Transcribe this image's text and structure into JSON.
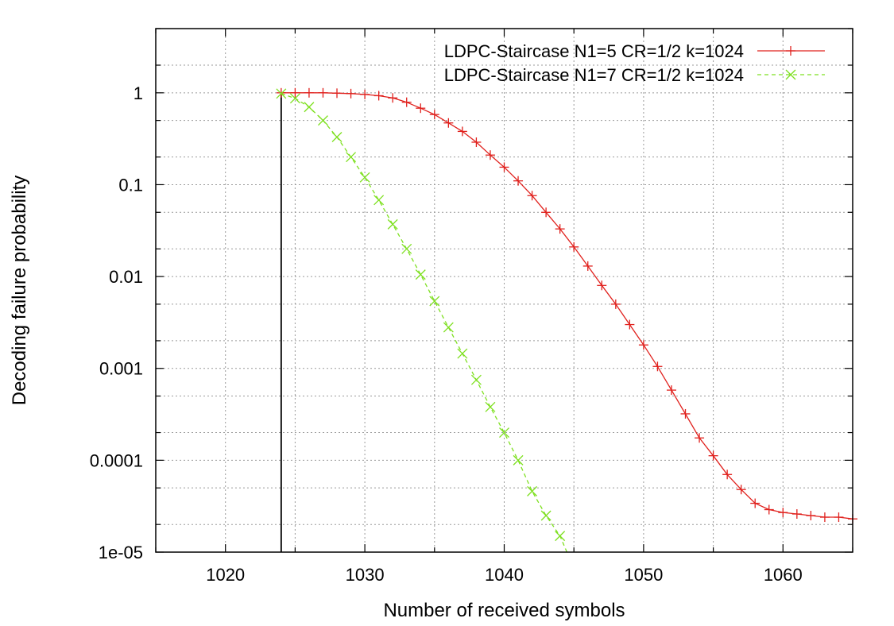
{
  "chart_data": {
    "type": "line",
    "xlabel": "Number of received symbols",
    "ylabel": "Decoding failure probability",
    "xlim": [
      1015,
      1065
    ],
    "ylim": [
      1e-05,
      5
    ],
    "yscale": "log",
    "grid": true,
    "legend_position": "top-right",
    "x_ticks": [
      1020,
      1030,
      1040,
      1050,
      1060
    ],
    "x_tick_labels": [
      "1020",
      "1030",
      "1040",
      "1050",
      "1060"
    ],
    "y_ticks": [
      1e-05,
      0.0001,
      0.001,
      0.01,
      0.1,
      1
    ],
    "y_tick_labels": [
      "1e-05",
      "0.0001",
      "0.001",
      "0.01",
      "0.1",
      "1"
    ],
    "vertical_line_x": 1024,
    "series": [
      {
        "name": "LDPC-Staircase N1=5 CR=1/2 k=1024",
        "color": "#e0201c",
        "dash": "solid",
        "marker": "plus",
        "x": [
          1024,
          1025,
          1026,
          1027,
          1028,
          1029,
          1030,
          1031,
          1032,
          1033,
          1034,
          1035,
          1036,
          1037,
          1038,
          1039,
          1040,
          1041,
          1042,
          1043,
          1044,
          1045,
          1046,
          1047,
          1048,
          1049,
          1050,
          1051,
          1052,
          1053,
          1054,
          1055,
          1056,
          1057,
          1058,
          1059,
          1060,
          1061,
          1062,
          1063,
          1064,
          1065
        ],
        "y": [
          1.0,
          1.0,
          1.0,
          1.0,
          0.99,
          0.98,
          0.96,
          0.93,
          0.88,
          0.79,
          0.68,
          0.58,
          0.47,
          0.38,
          0.29,
          0.21,
          0.155,
          0.11,
          0.076,
          0.05,
          0.033,
          0.021,
          0.013,
          0.008,
          0.005,
          0.003,
          0.0018,
          0.00105,
          0.00058,
          0.00032,
          0.000175,
          0.000112,
          7e-05,
          4.8e-05,
          3.4e-05,
          2.9e-05,
          2.7e-05,
          2.6e-05,
          2.5e-05,
          2.4e-05,
          2.4e-05,
          2.3e-05
        ]
      },
      {
        "name": "LDPC-Staircase N1=7 CR=1/2 k=1024",
        "color": "#7ee020",
        "dash": "dashed",
        "marker": "x",
        "x": [
          1024,
          1025,
          1026,
          1027,
          1028,
          1029,
          1030,
          1031,
          1032,
          1033,
          1034,
          1035,
          1036,
          1037,
          1038,
          1039,
          1040,
          1041,
          1042,
          1043,
          1044,
          1044.5
        ],
        "y": [
          0.98,
          0.87,
          0.7,
          0.5,
          0.33,
          0.2,
          0.12,
          0.068,
          0.037,
          0.02,
          0.0105,
          0.0054,
          0.0028,
          0.00145,
          0.00075,
          0.00038,
          0.0002,
          0.0001,
          4.6e-05,
          2.5e-05,
          1.5e-05,
          1e-05
        ]
      }
    ]
  }
}
